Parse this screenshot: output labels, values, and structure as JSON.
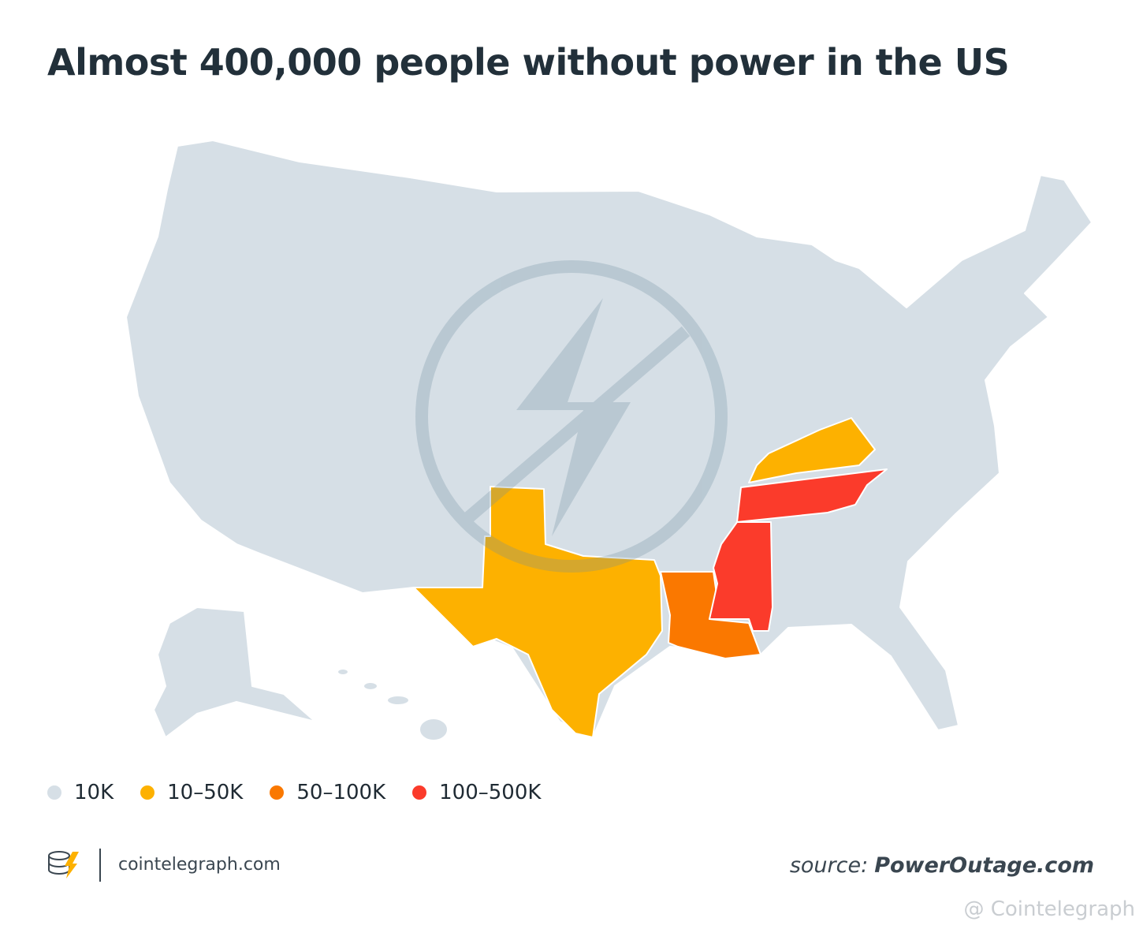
{
  "title": "Almost 400,000 people without power in the US",
  "legend": [
    {
      "label": "10K",
      "color": "#d6dfe6"
    },
    {
      "label": "10–50K",
      "color": "#fdb100"
    },
    {
      "label": "50–100K",
      "color": "#fa7800"
    },
    {
      "label": "100–500K",
      "color": "#fb3b2b"
    }
  ],
  "footer": {
    "site": "cointelegraph.com",
    "source_prefix": "source:",
    "source_name": "PowerOutage.com"
  },
  "watermark": "@ Cointelegraph"
}
